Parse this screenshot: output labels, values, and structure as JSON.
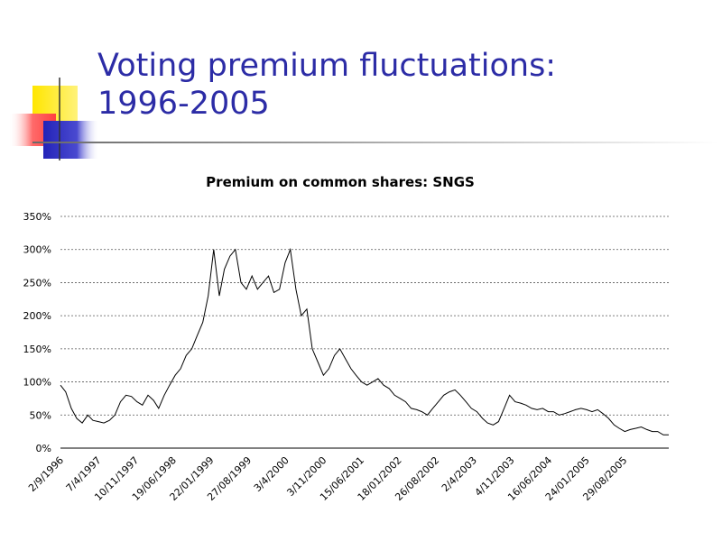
{
  "slide": {
    "title_line1": "Voting premium fluctuations:",
    "title_line2": "1996-2005",
    "title_color": "#2c2ca6"
  },
  "chart_data": {
    "type": "line",
    "title": "Premium on common shares: SNGS",
    "xlabel": "",
    "ylabel": "",
    "ylim": [
      0,
      350
    ],
    "y_ticks": [
      "0%",
      "50%",
      "100%",
      "150%",
      "200%",
      "250%",
      "300%",
      "350%"
    ],
    "grid": "horizontal dashed",
    "legend": "none",
    "x_tick_labels": [
      "2/9/1996",
      "7/4/1997",
      "10/11/1997",
      "19/06/1998",
      "22/01/1999",
      "27/08/1999",
      "3/4/2000",
      "3/11/2000",
      "15/06/2001",
      "18/01/2002",
      "26/08/2002",
      "2/4/2003",
      "4/11/2003",
      "16/06/2004",
      "24/01/2005",
      "29/08/2005"
    ],
    "line_color": "#000000",
    "series": [
      {
        "x": [
          "1996-09-02",
          "1996-10-01",
          "1996-11-01",
          "1996-12-01",
          "1997-01-01",
          "1997-02-01",
          "1997-03-01",
          "1997-04-01",
          "1997-05-01",
          "1997-06-01",
          "1997-07-01",
          "1997-08-01",
          "1997-09-01",
          "1997-10-01",
          "1997-11-01",
          "1997-12-01",
          "1998-01-01",
          "1998-02-01",
          "1998-03-01",
          "1998-04-01",
          "1998-05-01",
          "1998-06-01",
          "1998-07-01",
          "1998-08-01",
          "1998-09-01",
          "1998-10-01",
          "1998-11-01",
          "1998-12-01",
          "1999-01-01",
          "1999-02-01",
          "1999-03-01",
          "1999-04-01",
          "1999-05-01",
          "1999-06-01",
          "1999-07-01",
          "1999-08-01",
          "1999-09-01",
          "1999-10-01",
          "1999-11-01",
          "1999-12-01",
          "2000-01-01",
          "2000-02-01",
          "2000-03-01",
          "2000-04-01",
          "2000-05-01",
          "2000-06-01",
          "2000-07-01",
          "2000-08-01",
          "2000-09-01",
          "2000-10-01",
          "2000-11-01",
          "2000-12-01",
          "2001-01-01",
          "2001-02-01",
          "2001-03-01",
          "2001-04-01",
          "2001-05-01",
          "2001-06-01",
          "2001-07-01",
          "2001-08-01",
          "2001-09-01",
          "2001-10-01",
          "2001-11-01",
          "2001-12-01",
          "2002-01-01",
          "2002-02-01",
          "2002-03-01",
          "2002-04-01",
          "2002-05-01",
          "2002-06-01",
          "2002-07-01",
          "2002-08-01",
          "2002-09-01",
          "2002-10-01",
          "2002-11-01",
          "2002-12-01",
          "2003-01-01",
          "2003-02-01",
          "2003-03-01",
          "2003-04-01",
          "2003-05-01",
          "2003-06-01",
          "2003-07-01",
          "2003-08-01",
          "2003-09-01",
          "2003-10-01",
          "2003-11-01",
          "2003-12-01",
          "2004-01-01",
          "2004-02-01",
          "2004-03-01",
          "2004-04-01",
          "2004-05-01",
          "2004-06-01",
          "2004-07-01",
          "2004-08-01",
          "2004-09-01",
          "2004-10-01",
          "2004-11-01",
          "2004-12-01",
          "2005-01-01",
          "2005-02-01",
          "2005-03-01",
          "2005-04-01",
          "2005-05-01",
          "2005-06-01",
          "2005-07-01",
          "2005-08-01",
          "2005-09-01",
          "2005-10-01",
          "2005-11-01",
          "2005-12-01"
        ],
        "y": [
          95,
          85,
          60,
          45,
          38,
          50,
          42,
          40,
          38,
          42,
          50,
          70,
          80,
          78,
          70,
          65,
          80,
          72,
          60,
          80,
          95,
          110,
          120,
          140,
          150,
          170,
          190,
          230,
          300,
          230,
          270,
          290,
          300,
          250,
          240,
          260,
          240,
          250,
          260,
          235,
          240,
          280,
          300,
          240,
          200,
          210,
          150,
          130,
          110,
          120,
          140,
          150,
          135,
          120,
          110,
          100,
          95,
          100,
          105,
          95,
          90,
          80,
          75,
          70,
          60,
          58,
          55,
          50,
          60,
          70,
          80,
          85,
          88,
          80,
          70,
          60,
          55,
          45,
          38,
          35,
          40,
          60,
          80,
          70,
          68,
          65,
          60,
          58,
          60,
          55,
          55,
          50,
          52,
          55,
          58,
          60,
          58,
          55,
          58,
          52,
          45,
          35,
          30,
          25,
          28,
          30,
          32,
          28,
          25,
          25,
          20,
          20
        ]
      }
    ]
  }
}
